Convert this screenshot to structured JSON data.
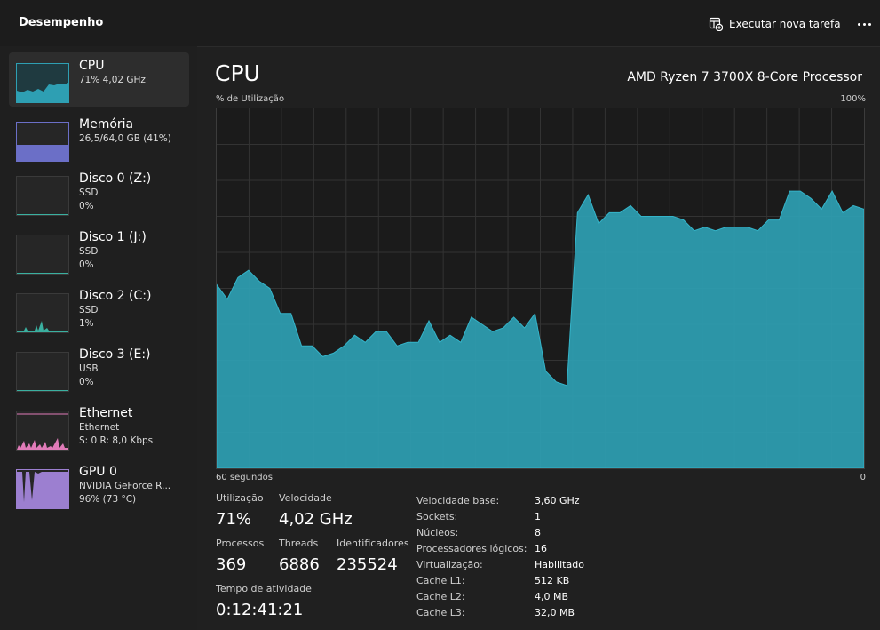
{
  "header": {
    "title": "Desempenho",
    "run_task_label": "Executar nova tarefa"
  },
  "sidebar": {
    "items": [
      {
        "name": "CPU",
        "sub1": "71% 4,02 GHz",
        "sub2": "",
        "color": "#2e9fb3",
        "selected": true
      },
      {
        "name": "Memória",
        "sub1": "26,5/64,0 GB (41%)",
        "sub2": "",
        "color": "#6b6fc7"
      },
      {
        "name": "Disco 0 (Z:)",
        "sub1": "SSD",
        "sub2": "0%",
        "color": "#3ab0a0"
      },
      {
        "name": "Disco 1 (J:)",
        "sub1": "SSD",
        "sub2": "0%",
        "color": "#3ab0a0"
      },
      {
        "name": "Disco 2 (C:)",
        "sub1": "SSD",
        "sub2": "1%",
        "color": "#3ab0a0"
      },
      {
        "name": "Disco 3 (E:)",
        "sub1": "USB",
        "sub2": "0%",
        "color": "#3ab0a0"
      },
      {
        "name": "Ethernet",
        "sub1": "Ethernet",
        "sub2": "S: 0 R: 8,0 Kbps",
        "color": "#e07bb8"
      },
      {
        "name": "GPU 0",
        "sub1": "NVIDIA GeForce R...",
        "sub2": "96% (73 °C)",
        "color": "#9c7fd0"
      }
    ]
  },
  "main": {
    "title": "CPU",
    "cpu_model": "AMD Ryzen 7 3700X 8-Core Processor",
    "y_axis_label": "% de Utilização",
    "y_max_label": "100%",
    "x_left_label": "60 segundos",
    "x_right_label": "0"
  },
  "stats": {
    "utilization_label": "Utilização",
    "utilization_value": "71%",
    "speed_label": "Velocidade",
    "speed_value": "4,02 GHz",
    "processes_label": "Processos",
    "processes_value": "369",
    "threads_label": "Threads",
    "threads_value": "6886",
    "handles_label": "Identificadores",
    "handles_value": "235524",
    "uptime_label": "Tempo de atividade",
    "uptime_value": "0:12:41:21"
  },
  "specs": [
    {
      "k": "Velocidade base:",
      "v": "3,60 GHz"
    },
    {
      "k": "Sockets:",
      "v": "1"
    },
    {
      "k": "Núcleos:",
      "v": "8"
    },
    {
      "k": "Processadores lógicos:",
      "v": "16"
    },
    {
      "k": "Virtualização:",
      "v": "Habilitado"
    },
    {
      "k": "Cache L1:",
      "v": "512 KB"
    },
    {
      "k": "Cache L2:",
      "v": "4,0 MB"
    },
    {
      "k": "Cache L3:",
      "v": "32,0 MB"
    }
  ],
  "chart_data": {
    "type": "area",
    "x_range": [
      60,
      0
    ],
    "ylim": [
      0,
      100
    ],
    "grid": true,
    "color": "#2e9fb3",
    "values": [
      51,
      47,
      53,
      55,
      52,
      50,
      43,
      43,
      34,
      34,
      31,
      32,
      34,
      37,
      35,
      38,
      38,
      34,
      35,
      35,
      41,
      35,
      37,
      35,
      42,
      40,
      38,
      39,
      42,
      39,
      43,
      27,
      24,
      23,
      71,
      76,
      68,
      71,
      71,
      73,
      70,
      70,
      70,
      70,
      69,
      66,
      67,
      66,
      67,
      67,
      67,
      66,
      69,
      69,
      77,
      77,
      75,
      72,
      77,
      71,
      73,
      72
    ]
  }
}
